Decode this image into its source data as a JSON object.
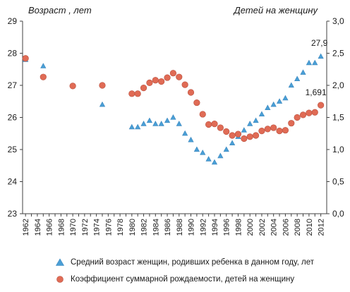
{
  "chart_data": {
    "type": "line",
    "title": "",
    "y_left_label": "Возраст , лет",
    "y_right_label": "Детей на женщину",
    "ylim_left": [
      23,
      29
    ],
    "yticks_left": [
      "23",
      "24",
      "25",
      "26",
      "27",
      "28",
      "29"
    ],
    "ylim_right": [
      0.0,
      3.0
    ],
    "yticks_right": [
      "0,0",
      "0,5",
      "1,0",
      "1,5",
      "2,0",
      "2,5",
      "3,0"
    ],
    "xlim": [
      1961.5,
      2013
    ],
    "xticks": [
      "1962",
      "1964",
      "1966",
      "1968",
      "1970",
      "1972",
      "1974",
      "1976",
      "1978",
      "1980",
      "1982",
      "1984",
      "1986",
      "1988",
      "1990",
      "1992",
      "1994",
      "1996",
      "1998",
      "2000",
      "2002",
      "2004",
      "2006",
      "2008",
      "2010",
      "2012"
    ],
    "grid": false,
    "legend_position": "bottom",
    "series": [
      {
        "name": "Средний  возраст женщин, родивших ребенка в данном году, лет",
        "axis": "left",
        "marker": "triangle",
        "color": "#4a9fd6",
        "x": [
          1962,
          1965,
          1975,
          1980,
          1981,
          1982,
          1983,
          1984,
          1985,
          1986,
          1987,
          1988,
          1989,
          1990,
          1991,
          1992,
          1993,
          1994,
          1995,
          1996,
          1997,
          1998,
          1999,
          2000,
          2001,
          2002,
          2003,
          2004,
          2005,
          2006,
          2007,
          2008,
          2009,
          2010,
          2011,
          2012
        ],
        "values": [
          27.8,
          27.6,
          26.4,
          25.7,
          25.7,
          25.8,
          25.9,
          25.8,
          25.8,
          25.9,
          26.0,
          25.8,
          25.5,
          25.3,
          25.0,
          24.9,
          24.7,
          24.6,
          24.8,
          25.0,
          25.2,
          25.4,
          25.6,
          25.8,
          25.9,
          26.1,
          26.3,
          26.4,
          26.5,
          26.6,
          27.0,
          27.2,
          27.4,
          27.7,
          27.7,
          27.9
        ]
      },
      {
        "name": "Коэффициент  суммарной рождаемости, детей на женщину",
        "axis": "right",
        "marker": "circle",
        "color": "#e06b55",
        "x": [
          1962,
          1965,
          1970,
          1975,
          1980,
          1981,
          1982,
          1983,
          1984,
          1985,
          1986,
          1987,
          1988,
          1989,
          1990,
          1991,
          1992,
          1993,
          1994,
          1995,
          1996,
          1997,
          1998,
          1999,
          2000,
          2001,
          2002,
          2003,
          2004,
          2005,
          2006,
          2007,
          2008,
          2009,
          2010,
          2011,
          2012
        ],
        "values": [
          2.42,
          2.13,
          1.99,
          2.0,
          1.87,
          1.87,
          1.96,
          2.04,
          2.08,
          2.06,
          2.12,
          2.19,
          2.13,
          2.01,
          1.89,
          1.73,
          1.55,
          1.39,
          1.4,
          1.34,
          1.28,
          1.22,
          1.24,
          1.17,
          1.2,
          1.22,
          1.29,
          1.32,
          1.34,
          1.29,
          1.3,
          1.41,
          1.5,
          1.54,
          1.57,
          1.58,
          1.691
        ]
      }
    ],
    "annotations": [
      "27,9",
      "1,691"
    ]
  }
}
